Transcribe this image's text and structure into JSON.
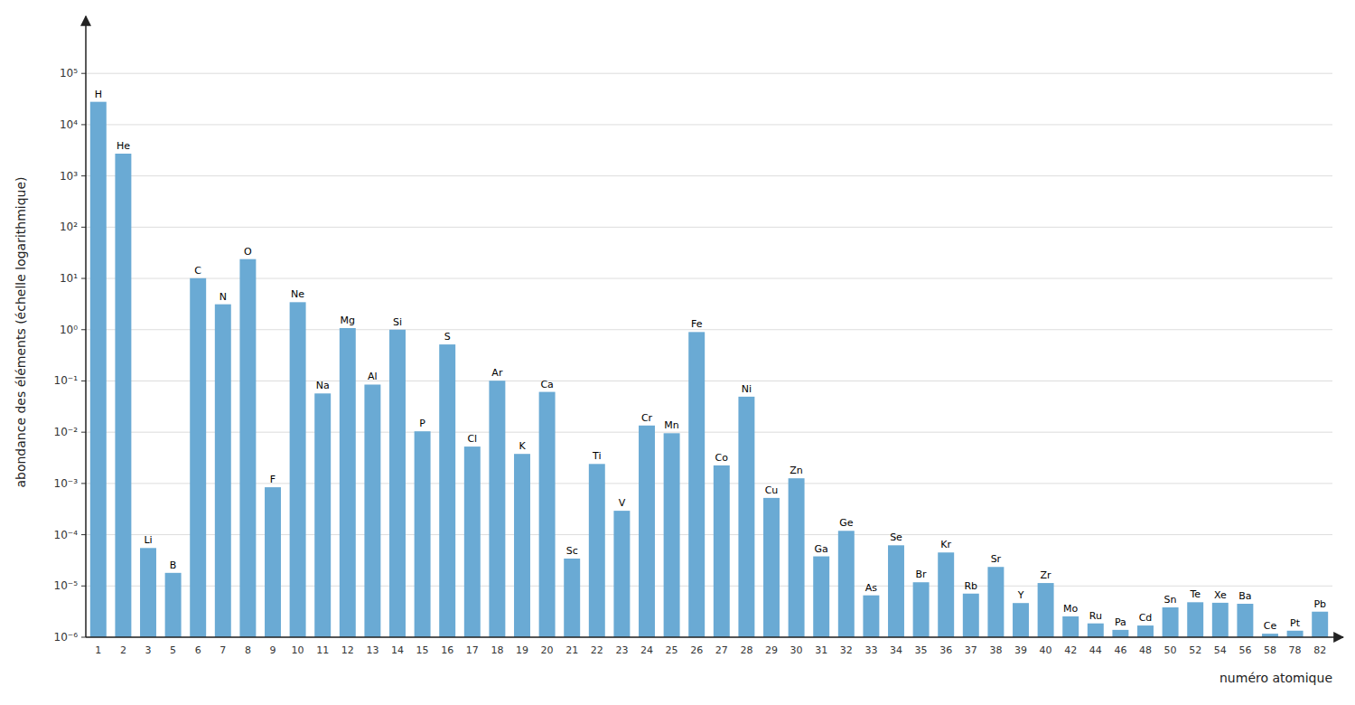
{
  "chart_data": {
    "type": "bar",
    "categories": [
      "1",
      "2",
      "3",
      "5",
      "6",
      "7",
      "8",
      "9",
      "10",
      "11",
      "12",
      "13",
      "14",
      "15",
      "16",
      "17",
      "18",
      "19",
      "20",
      "21",
      "22",
      "23",
      "24",
      "25",
      "26",
      "27",
      "28",
      "29",
      "30",
      "31",
      "32",
      "33",
      "34",
      "35",
      "36",
      "37",
      "38",
      "39",
      "40",
      "42",
      "44",
      "46",
      "48",
      "50",
      "52",
      "54",
      "56",
      "58",
      "78",
      "82"
    ],
    "values": [
      27900,
      2720,
      5.5e-05,
      1.8e-05,
      10.1,
      3.13,
      23.8,
      0.000843,
      3.44,
      0.057,
      1.074,
      0.0849,
      1.0,
      0.0104,
      0.515,
      0.00524,
      0.101,
      0.00377,
      0.0611,
      3.42e-05,
      0.0024,
      0.000293,
      0.0135,
      0.00955,
      0.9,
      0.00225,
      0.0493,
      0.000522,
      0.00126,
      3.78e-05,
      0.000119,
      6.56e-06,
      6.21e-05,
      1.18e-05,
      4.5e-05,
      7.09e-06,
      2.35e-05,
      4.64e-06,
      1.14e-05,
      2.55e-06,
      1.86e-06,
      1.39e-06,
      1.69e-06,
      3.82e-06,
      4.81e-06,
      4.7e-06,
      4.49e-06,
      1.17e-06,
      1.34e-06,
      3.15e-06
    ],
    "annotations": [
      "H",
      "He",
      "Li",
      "B",
      "C",
      "N",
      "O",
      "F",
      "Ne",
      "Na",
      "Mg",
      "Al",
      "Si",
      "P",
      "S",
      "Cl",
      "Ar",
      "K",
      "Ca",
      "Sc",
      "Ti",
      "V",
      "Cr",
      "Mn",
      "Fe",
      "Co",
      "Ni",
      "Cu",
      "Zn",
      "Ga",
      "Ge",
      "As",
      "Se",
      "Br",
      "Kr",
      "Rb",
      "Sr",
      "Y",
      "Zr",
      "Mo",
      "Ru",
      "Pa",
      "Cd",
      "Sn",
      "Te",
      "Xe",
      "Ba",
      "Ce",
      "Pt",
      "Pb"
    ],
    "color": "#6aaad4",
    "x_label": "numéro atomique",
    "y_label": "abondance des éléments (échelle logarithmique)",
    "log": "y",
    "ylim": [
      1e-06,
      800000
    ],
    "yticks": [
      {
        "value": 1e-06,
        "label": "10⁻⁶"
      },
      {
        "value": 1e-05,
        "label": "10⁻⁵"
      },
      {
        "value": 0.0001,
        "label": "10⁻⁴"
      },
      {
        "value": 0.001,
        "label": "10⁻³"
      },
      {
        "value": 0.01,
        "label": "10⁻²"
      },
      {
        "value": 0.1,
        "label": "10⁻¹"
      },
      {
        "value": 1,
        "label": "10⁰"
      },
      {
        "value": 10,
        "label": "10¹"
      },
      {
        "value": 100,
        "label": "10²"
      },
      {
        "value": 1000,
        "label": "10³"
      },
      {
        "value": 10000,
        "label": "10⁴"
      },
      {
        "value": 100000,
        "label": "10⁵"
      }
    ],
    "grid": true
  }
}
